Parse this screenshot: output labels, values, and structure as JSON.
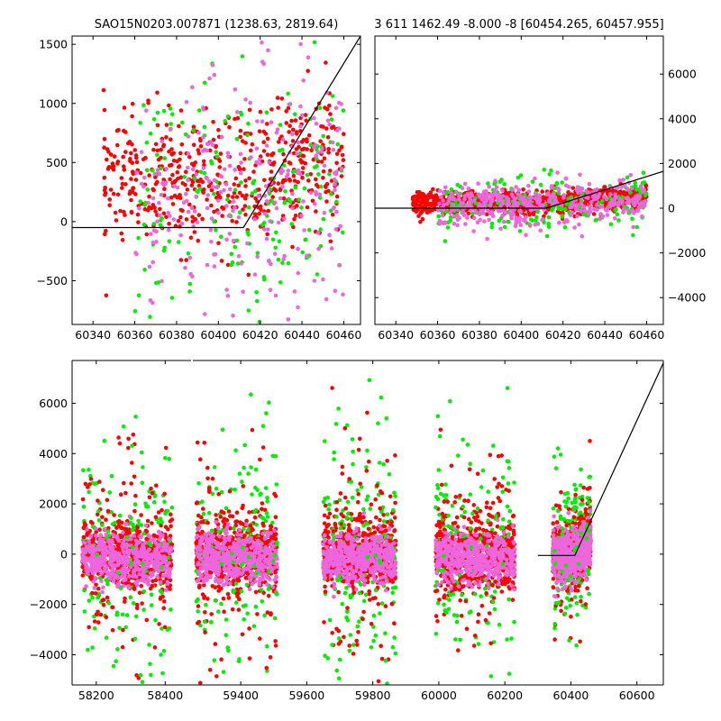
{
  "chart_data": [
    {
      "type": "scatter",
      "id": "top-left",
      "title": "SAO15N0203.007871 (1238.63, 2819.64)",
      "xlim": [
        60330,
        60468
      ],
      "ylim": [
        -870,
        1570
      ],
      "xticks": [
        60340,
        60360,
        60380,
        60400,
        60420,
        60440,
        60460
      ],
      "yticks": [
        -500,
        0,
        500,
        1000,
        1500
      ],
      "ytick_labels": [
        "−500",
        "0",
        "500",
        "1000",
        "1500"
      ],
      "ytick_side": "left",
      "model_line": [
        [
          60330,
          -50
        ],
        [
          60412,
          -50
        ],
        [
          60468,
          1570
        ]
      ],
      "series": [
        {
          "color": "#ff0000",
          "x_range": [
            60345,
            60460
          ],
          "center": 350,
          "spread": 280,
          "count": 520
        },
        {
          "color": "#00ee00",
          "x_range": [
            60360,
            60460
          ],
          "center": 150,
          "spread": 500,
          "count": 190
        },
        {
          "color": "#ee66dd",
          "x_range": [
            60360,
            60460
          ],
          "center": 200,
          "spread": 500,
          "count": 260
        }
      ]
    },
    {
      "type": "scatter",
      "id": "top-right",
      "title": "3 611 1462.49 -8.000 -8 [60454.265, 60457.955]",
      "xlim": [
        60330,
        60468
      ],
      "ylim": [
        -5200,
        7700
      ],
      "xticks": [
        60340,
        60360,
        60380,
        60400,
        60420,
        60440,
        60460
      ],
      "yticks": [
        -4000,
        -2000,
        0,
        2000,
        4000,
        6000
      ],
      "ytick_labels": [
        "−4000",
        "−2000",
        "0",
        "2000",
        "4000",
        "6000"
      ],
      "ytick_side": "right",
      "model_line": [
        [
          60330,
          0
        ],
        [
          60412,
          0
        ],
        [
          60468,
          1650
        ]
      ],
      "series": [
        {
          "color": "#ff0000",
          "x_range": [
            60348,
            60460
          ],
          "center": 250,
          "spread": 260,
          "count": 800
        },
        {
          "color": "#00ee00",
          "x_range": [
            60360,
            60460
          ],
          "center": 100,
          "spread": 650,
          "count": 220
        },
        {
          "color": "#ee66dd",
          "x_range": [
            60360,
            60460
          ],
          "center": 150,
          "spread": 450,
          "count": 420
        }
      ]
    },
    {
      "type": "scatter",
      "id": "bottom",
      "title": "",
      "ylim": [
        -5200,
        7700
      ],
      "yticks": [
        -4000,
        -2000,
        0,
        2000,
        4000,
        6000
      ],
      "ytick_labels": [
        "−4000",
        "−2000",
        "0",
        "2000",
        "4000",
        "6000"
      ],
      "segments": [
        {
          "xlim": [
            58130,
            58475
          ],
          "xticks": [
            58200,
            58400
          ]
        },
        {
          "xlim": [
            59255,
            60680
          ],
          "xticks": [
            59400,
            59600,
            59800,
            60000,
            60200,
            60400,
            60600
          ]
        }
      ],
      "model_line": [
        [
          60300,
          -50
        ],
        [
          60412,
          -50
        ],
        [
          60680,
          7600
        ]
      ],
      "clusters": [
        {
          "x_range": [
            58160,
            58420
          ]
        },
        {
          "x_range": [
            59265,
            59510
          ]
        },
        {
          "x_range": [
            59650,
            59870
          ]
        },
        {
          "x_range": [
            59990,
            60230
          ]
        },
        {
          "x_range": [
            60345,
            60460
          ]
        }
      ],
      "series_colors": [
        "#ff0000",
        "#00ee00",
        "#ee66dd"
      ]
    }
  ]
}
